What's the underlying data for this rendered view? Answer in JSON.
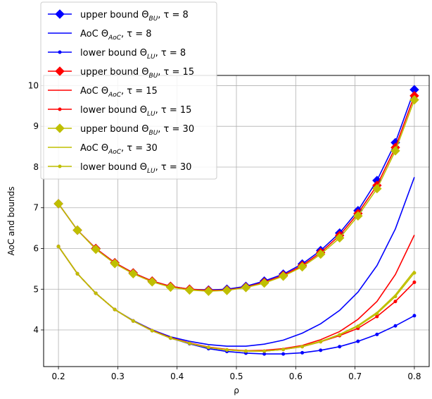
{
  "chart_data": {
    "type": "line",
    "xlabel": "ρ",
    "ylabel": "AoC and bounds",
    "xlim": [
      0.175,
      0.825
    ],
    "ylim": [
      3.1,
      10.25
    ],
    "grid": true,
    "legend_position": "top-left",
    "x_ticks": [
      0.2,
      0.3,
      0.4,
      0.5,
      0.6,
      0.7,
      0.8
    ],
    "x_tick_labels": [
      "0.2",
      "0.3",
      "0.4",
      "0.5",
      "0.6",
      "0.7",
      "0.8"
    ],
    "y_ticks": [
      4,
      5,
      6,
      7,
      8,
      9,
      10
    ],
    "y_tick_labels": [
      "4",
      "5",
      "6",
      "7",
      "8",
      "9",
      "10"
    ],
    "x": [
      0.2,
      0.232,
      0.263,
      0.295,
      0.326,
      0.358,
      0.389,
      0.421,
      0.453,
      0.484,
      0.516,
      0.547,
      0.579,
      0.611,
      0.642,
      0.674,
      0.705,
      0.737,
      0.768,
      0.8
    ],
    "series": [
      {
        "name": "upper bound Θ_BU, τ = 8",
        "color": "#0000ff",
        "marker": "diamond",
        "values": [
          7.1,
          6.45,
          6.0,
          5.65,
          5.4,
          5.2,
          5.07,
          5.0,
          4.98,
          5.0,
          5.07,
          5.2,
          5.37,
          5.62,
          5.95,
          6.38,
          6.93,
          7.67,
          8.6,
          9.9
        ]
      },
      {
        "name": "AoC Θ_AoC, τ = 8",
        "color": "#0000ff",
        "marker": "none",
        "values": [
          6.05,
          5.38,
          4.9,
          4.5,
          4.23,
          4.0,
          3.83,
          3.72,
          3.64,
          3.6,
          3.6,
          3.65,
          3.75,
          3.92,
          4.15,
          4.48,
          4.93,
          5.58,
          6.48,
          7.75
        ]
      },
      {
        "name": "lower bound Θ_LU, τ = 8",
        "color": "#0000ff",
        "marker": "dot",
        "values": [
          6.05,
          5.38,
          4.9,
          4.5,
          4.22,
          3.98,
          3.8,
          3.66,
          3.54,
          3.47,
          3.43,
          3.41,
          3.41,
          3.44,
          3.5,
          3.59,
          3.72,
          3.89,
          4.1,
          4.35
        ]
      },
      {
        "name": "upper bound Θ_BU, τ = 15",
        "color": "#ff0000",
        "marker": "diamond",
        "values": [
          7.1,
          6.45,
          6.0,
          5.65,
          5.4,
          5.2,
          5.07,
          5.0,
          4.97,
          4.98,
          5.05,
          5.17,
          5.34,
          5.58,
          5.9,
          6.32,
          6.86,
          7.55,
          8.48,
          9.75
        ]
      },
      {
        "name": "AoC Θ_AoC, τ = 15",
        "color": "#ff0000",
        "marker": "none",
        "values": [
          6.05,
          5.38,
          4.9,
          4.5,
          4.22,
          3.99,
          3.81,
          3.68,
          3.58,
          3.52,
          3.49,
          3.5,
          3.54,
          3.62,
          3.76,
          3.96,
          4.26,
          4.7,
          5.36,
          6.33
        ]
      },
      {
        "name": "lower bound Θ_LU, τ = 15",
        "color": "#ff0000",
        "marker": "dot",
        "values": [
          6.05,
          5.38,
          4.9,
          4.5,
          4.22,
          3.98,
          3.8,
          3.67,
          3.57,
          3.51,
          3.48,
          3.48,
          3.52,
          3.59,
          3.71,
          3.86,
          4.04,
          4.33,
          4.7,
          5.17
        ]
      },
      {
        "name": "upper bound Θ_BU, τ = 30",
        "color": "#bfbf00",
        "marker": "diamond",
        "values": [
          7.1,
          6.45,
          5.98,
          5.63,
          5.38,
          5.18,
          5.05,
          4.98,
          4.95,
          4.97,
          5.04,
          5.15,
          5.32,
          5.55,
          5.86,
          6.26,
          6.8,
          7.47,
          8.4,
          9.65
        ]
      },
      {
        "name": "AoC Θ_AoC, τ = 30",
        "color": "#bfbf00",
        "marker": "none",
        "values": [
          6.05,
          5.38,
          4.9,
          4.5,
          4.22,
          3.98,
          3.8,
          3.67,
          3.57,
          3.51,
          3.48,
          3.48,
          3.52,
          3.6,
          3.72,
          3.89,
          4.11,
          4.43,
          4.86,
          5.45
        ]
      },
      {
        "name": "lower bound Θ_LU, τ = 30",
        "color": "#bfbf00",
        "marker": "dot",
        "values": [
          6.05,
          5.38,
          4.9,
          4.5,
          4.22,
          3.98,
          3.8,
          3.67,
          3.57,
          3.51,
          3.48,
          3.48,
          3.52,
          3.59,
          3.71,
          3.88,
          4.09,
          4.4,
          4.82,
          5.4
        ]
      }
    ]
  },
  "legend": [
    {
      "prefix": "upper bound Θ",
      "sub": "BU",
      "suffix": ", τ = 8"
    },
    {
      "prefix": "AoC Θ",
      "sub": "AoC",
      "suffix": ", τ = 8"
    },
    {
      "prefix": "lower bound Θ",
      "sub": "LU",
      "suffix": ", τ = 8"
    },
    {
      "prefix": "upper bound Θ",
      "sub": "BU",
      "suffix": ", τ = 15"
    },
    {
      "prefix": "AoC Θ",
      "sub": "AoC",
      "suffix": ", τ = 15"
    },
    {
      "prefix": "lower bound Θ",
      "sub": "LU",
      "suffix": ", τ = 15"
    },
    {
      "prefix": "upper bound Θ",
      "sub": "BU",
      "suffix": ", τ = 30"
    },
    {
      "prefix": "AoC Θ",
      "sub": "AoC",
      "suffix": ", τ = 30"
    },
    {
      "prefix": "lower bound Θ",
      "sub": "LU",
      "suffix": ", τ = 30"
    }
  ]
}
